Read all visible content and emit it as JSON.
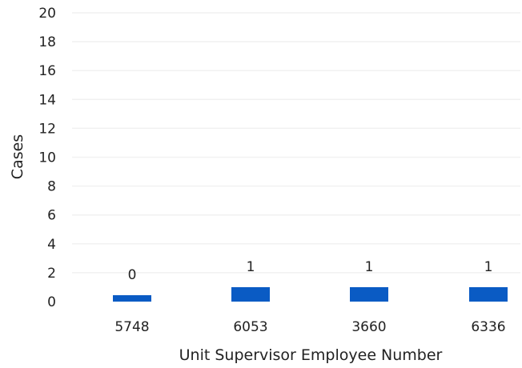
{
  "chart_data": {
    "type": "bar",
    "title": "",
    "xlabel": "Unit Supervisor Employee Number",
    "ylabel": "Cases",
    "categories": [
      "5748",
      "6053",
      "3660",
      "6336"
    ],
    "values": [
      0,
      1,
      1,
      1
    ],
    "data_labels": [
      "0",
      "1",
      "1",
      "1"
    ],
    "ylim": [
      0,
      20
    ],
    "yticks": [
      0,
      2,
      4,
      6,
      8,
      10,
      12,
      14,
      16,
      18,
      20
    ],
    "grid": true,
    "legend": "none",
    "bar_color": "#0a5bc4"
  }
}
